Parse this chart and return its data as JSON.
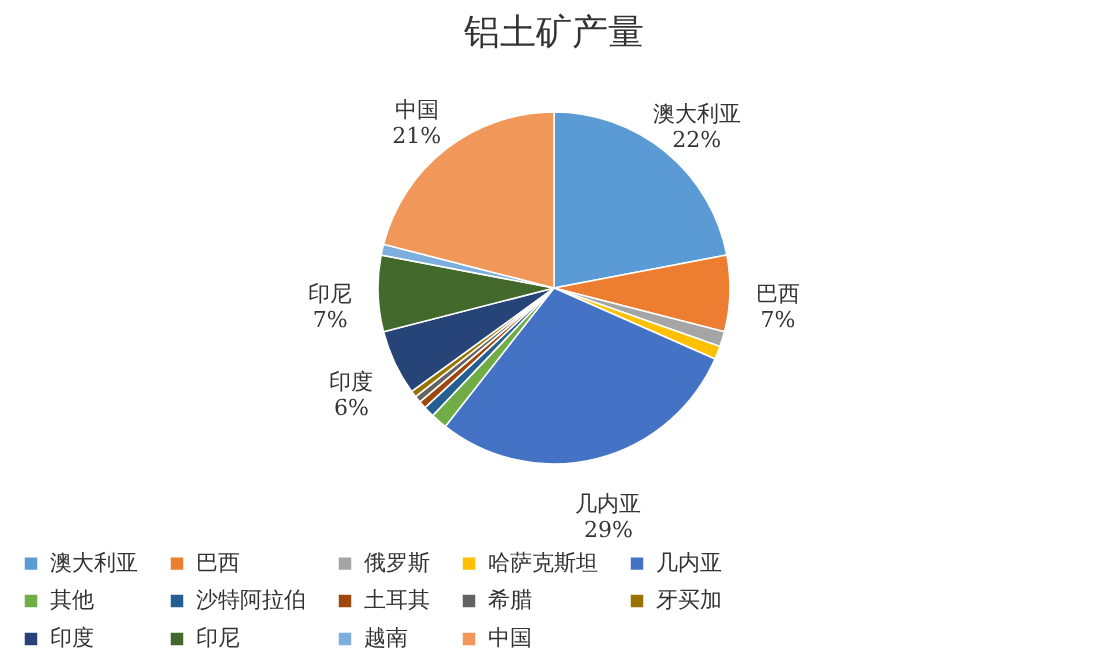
{
  "chart_data": {
    "type": "pie",
    "title": "铝土矿产量",
    "categories": [
      "澳大利亚",
      "巴西",
      "俄罗斯",
      "哈萨克斯坦",
      "几内亚",
      "其他",
      "沙特阿拉伯",
      "土耳其",
      "希腊",
      "牙买加",
      "印度",
      "印尼",
      "越南",
      "中国"
    ],
    "values": [
      22,
      7,
      1.4,
      1.2,
      29,
      1.5,
      1.0,
      0.7,
      0.6,
      0.6,
      6,
      7,
      1.0,
      21
    ],
    "colors": [
      "#5b9bd5",
      "#ed7d31",
      "#a5a5a5",
      "#ffc000",
      "#4472c4",
      "#70ad47",
      "#255e91",
      "#9e480e",
      "#636363",
      "#997300",
      "#264478",
      "#43682b",
      "#7cafdd",
      "#f1975a"
    ],
    "value_labels": [
      "22%",
      "7%",
      null,
      null,
      "29%",
      null,
      null,
      null,
      null,
      null,
      "6%",
      "7%",
      null,
      "21%"
    ],
    "legend": "bottom"
  }
}
